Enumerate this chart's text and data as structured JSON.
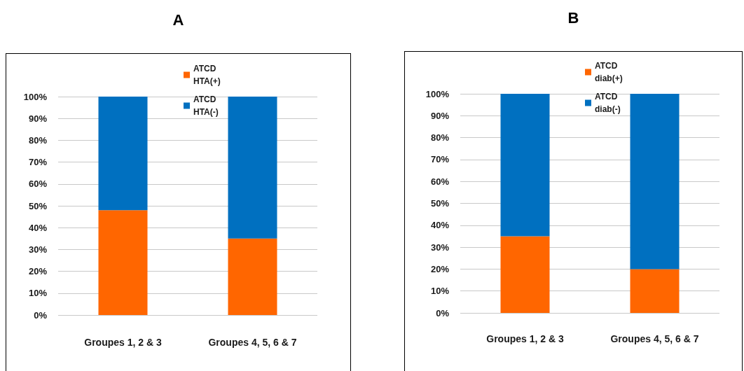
{
  "chart_data": [
    {
      "type": "bar",
      "title": "A",
      "categories": [
        "Groupes 1, 2 & 3",
        "Groupes 4, 5, 6 & 7"
      ],
      "series": [
        {
          "name": "ATCD HTA(+)",
          "color": "#ff6600",
          "values": [
            48,
            35
          ]
        },
        {
          "name": "ATCD HTA(-)",
          "color": "#0070c0",
          "values": [
            52,
            65
          ]
        }
      ],
      "stacked": true,
      "ylim": [
        0,
        100
      ],
      "yticks": [
        {
          "value": 0,
          "label": "0%"
        },
        {
          "value": 10,
          "label": "10%"
        },
        {
          "value": 20,
          "label": "20%"
        },
        {
          "value": 30,
          "label": "30%"
        },
        {
          "value": 40,
          "label": "40%"
        },
        {
          "value": 50,
          "label": "50%"
        },
        {
          "value": 60,
          "label": "60%"
        },
        {
          "value": 70,
          "label": "70%"
        },
        {
          "value": 80,
          "label": "80%"
        },
        {
          "value": 90,
          "label": "90%"
        },
        {
          "value": 100,
          "label": "100%"
        }
      ],
      "grid": "y",
      "legend": "top"
    },
    {
      "type": "bar",
      "title": "B",
      "categories": [
        "Groupes 1, 2 & 3",
        "Groupes 4, 5, 6 & 7"
      ],
      "series": [
        {
          "name": "ATCD diab(+)",
          "color": "#ff6600",
          "values": [
            35,
            20
          ]
        },
        {
          "name": "ATCD diab(-)",
          "color": "#0070c0",
          "values": [
            65,
            80
          ]
        }
      ],
      "stacked": true,
      "ylim": [
        0,
        100
      ],
      "yticks": [
        {
          "value": 0,
          "label": "0%"
        },
        {
          "value": 10,
          "label": "10%"
        },
        {
          "value": 20,
          "label": "20%"
        },
        {
          "value": 30,
          "label": "30%"
        },
        {
          "value": 40,
          "label": "40%"
        },
        {
          "value": 50,
          "label": "50%"
        },
        {
          "value": 60,
          "label": "60%"
        },
        {
          "value": 70,
          "label": "70%"
        },
        {
          "value": 80,
          "label": "80%"
        },
        {
          "value": 90,
          "label": "90%"
        },
        {
          "value": 100,
          "label": "100%"
        }
      ],
      "grid": "y",
      "legend": "top"
    }
  ]
}
